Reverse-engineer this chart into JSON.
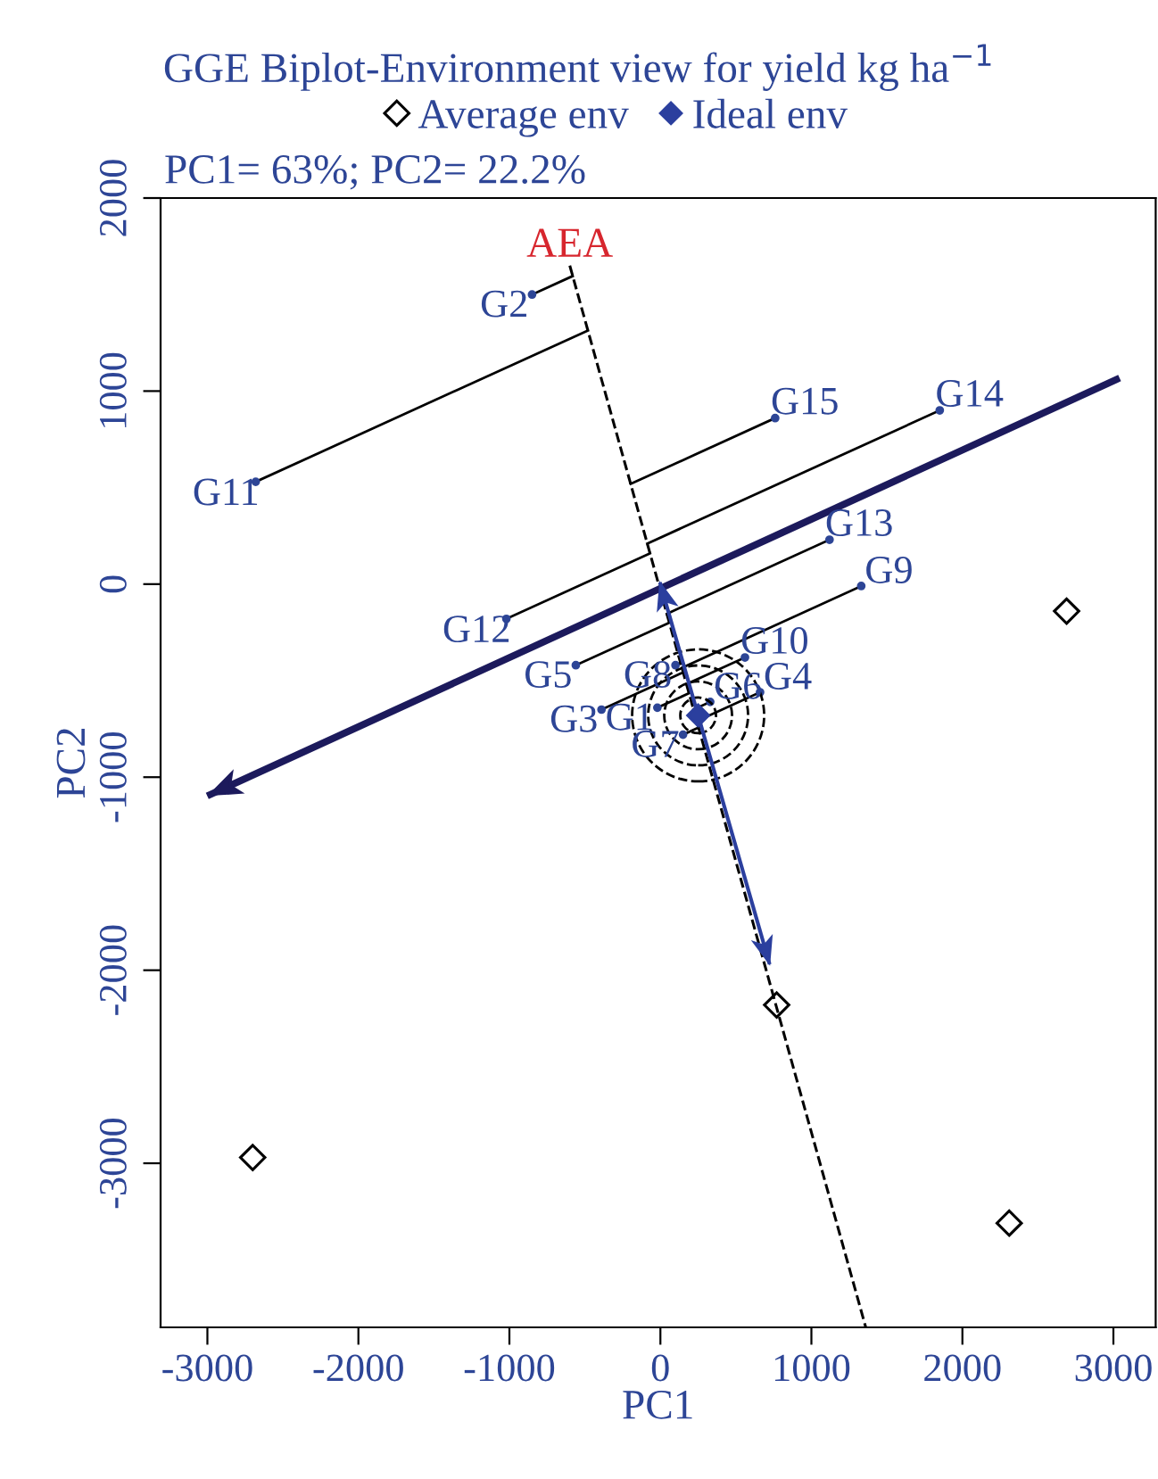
{
  "chart_data": {
    "type": "scatter",
    "title": "GGE Biplot-Environment view for yield kg ha$^{−1}$",
    "subtitle": "PC1= 63%; PC2= 22.2%",
    "xlabel": "PC1",
    "ylabel": "PC2",
    "xlim": [
      -3310,
      3280
    ],
    "ylim": [
      -3850,
      2000
    ],
    "xticks": [
      -3000,
      -2000,
      -1000,
      0,
      1000,
      2000,
      3000
    ],
    "yticks": [
      -3000,
      -2000,
      -1000,
      0,
      1000,
      2000
    ],
    "grid": false,
    "legend": "top",
    "series": [
      {
        "name": "AEA",
        "type": "line",
        "color": "#000000",
        "line_style": "dashed",
        "x": [
          -600,
          1360
        ],
        "values": [
          1650,
          -3850
        ]
      },
      {
        "type": "line",
        "color": "#1c1a5c",
        "line_style": "solid",
        "x": [
          3020,
          -2980
        ],
        "values": [
          1060,
          -1090
        ]
      },
      {
        "type": "line",
        "color": "#2b3f9e",
        "line_style": "solid",
        "x": [
          250,
          0
        ],
        "values": [
          -680,
          0
        ]
      },
      {
        "type": "line",
        "color": "#2b3f9e",
        "line_style": "solid",
        "x": [
          250,
          720
        ],
        "values": [
          -680,
          -1960
        ]
      },
      {
        "marker": "circle",
        "color": "#2d4596",
        "x": [
          -850,
          -2680,
          760,
          1850,
          1120,
          -1020,
          1330,
          -560,
          -390,
          560,
          100,
          -20,
          330,
          660,
          150
        ],
        "values": [
          1500,
          530,
          860,
          900,
          230,
          -180,
          -10,
          -420,
          -650,
          -380,
          -420,
          -640,
          -610,
          -560,
          -780
        ],
        "value_labels": [
          "G2",
          "G11",
          "G15",
          "G14",
          "G13",
          "G12",
          "G9",
          "G5",
          "G3",
          "G10",
          "G8",
          "G1",
          "G6",
          "G4",
          "G7"
        ]
      },
      {
        "name": "Average env",
        "marker": "diamond",
        "color": "#000000",
        "x": [
          2690,
          -2700,
          2310,
          770
        ],
        "values": [
          -140,
          -2970,
          -3310,
          -2180
        ]
      },
      {
        "name": "Ideal env",
        "marker": "diamond",
        "color": "#2b3f9e",
        "x": [
          250
        ],
        "values": [
          -680
        ]
      }
    ]
  }
}
